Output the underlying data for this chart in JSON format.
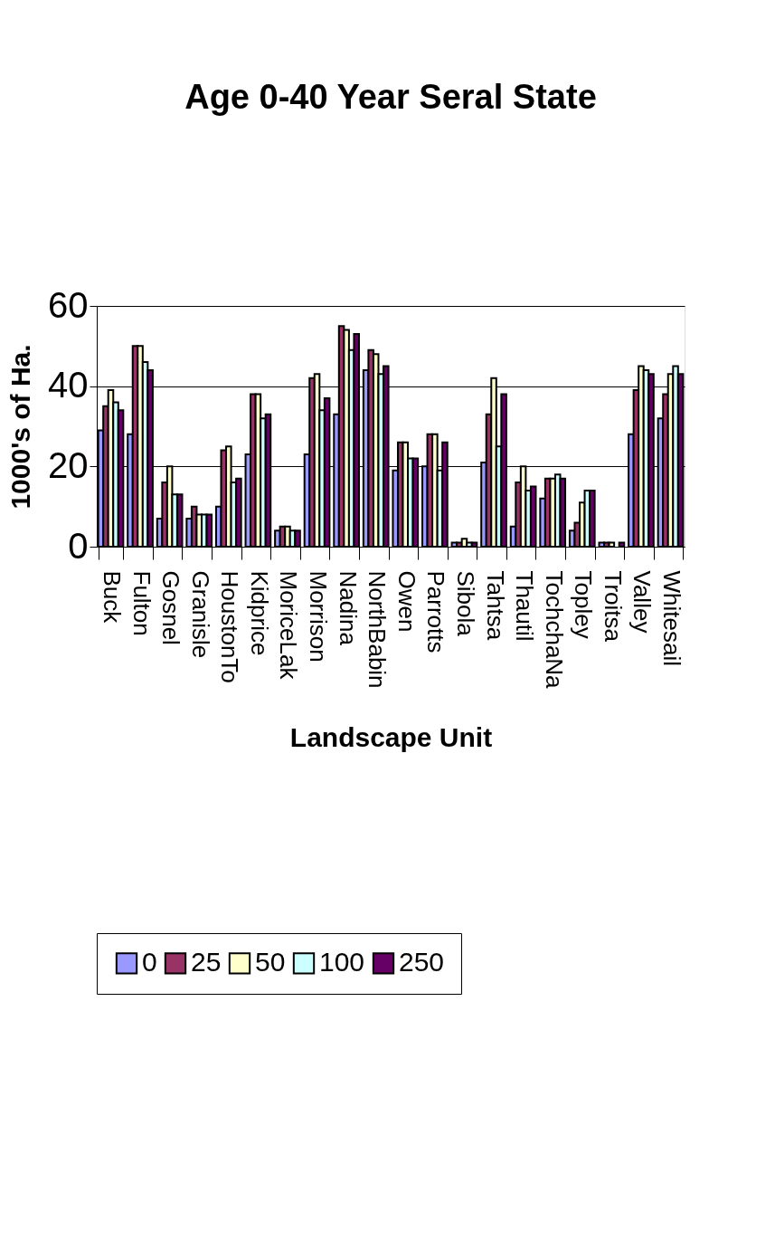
{
  "chart_data": {
    "type": "bar",
    "title": "Age 0-40 Year Seral State",
    "xlabel": "Landscape Unit",
    "ylabel": "1000's of Ha.",
    "categories": [
      "Buck",
      "Fulton",
      "Gosnel",
      "Granisle",
      "HoustonTo",
      "Kidprice",
      "MoriceLak",
      "Morrison",
      "Nadina",
      "NorthBabin",
      "Owen",
      "Parrotts",
      "Sibola",
      "Tahtsa",
      "Thautil",
      "TochchaNa",
      "Topley",
      "Troitsa",
      "Valley",
      "Whitesail"
    ],
    "series": [
      {
        "name": "0",
        "color": "#9999ff",
        "values": [
          29,
          28,
          7,
          7,
          10,
          23,
          4,
          23,
          33,
          44,
          19,
          20,
          1,
          21,
          5,
          12,
          4,
          1,
          28,
          32
        ]
      },
      {
        "name": "25",
        "color": "#993366",
        "values": [
          35,
          50,
          16,
          10,
          24,
          38,
          5,
          42,
          55,
          49,
          26,
          28,
          1,
          33,
          16,
          17,
          6,
          1,
          39,
          38
        ]
      },
      {
        "name": "50",
        "color": "#ffffcc",
        "values": [
          39,
          50,
          20,
          8,
          25,
          38,
          5,
          43,
          54,
          48,
          26,
          28,
          2,
          42,
          20,
          17,
          11,
          1,
          45,
          43
        ]
      },
      {
        "name": "100",
        "color": "#ccffff",
        "values": [
          36,
          46,
          13,
          8,
          16,
          32,
          4,
          34,
          49,
          43,
          22,
          19,
          1,
          25,
          14,
          18,
          14,
          null,
          44,
          45
        ]
      },
      {
        "name": "250",
        "color": "#660066",
        "values": [
          34,
          44,
          13,
          8,
          17,
          33,
          4,
          37,
          53,
          45,
          22,
          26,
          1,
          38,
          15,
          17,
          14,
          1,
          43,
          43
        ]
      }
    ],
    "ylim": [
      0,
      60
    ],
    "yticks": [
      0,
      20,
      40,
      60
    ],
    "grid": "y",
    "legend": "bottom"
  }
}
